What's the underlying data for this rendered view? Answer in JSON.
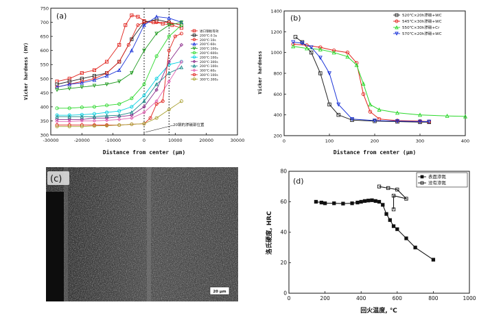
{
  "chart_data": [
    {
      "panel": "(a)",
      "type": "line",
      "xlabel": "Distance from center (μm)",
      "ylabel": "Vicker hardness (HV)",
      "xlim": [
        -30000,
        30000
      ],
      "ylim": [
        300,
        750
      ],
      "xticks": [
        -30000,
        -20000,
        -10000,
        0,
        10000,
        20000,
        30000
      ],
      "yticks": [
        300,
        350,
        400,
        450,
        500,
        550,
        600,
        650,
        700,
        750
      ],
      "grid": false,
      "legend_position": "top-right",
      "annotation": "20钢的渗碳部位置",
      "guides_x": [
        0,
        8000
      ],
      "series": [
        {
          "name": "进口钢板等效",
          "color": "#e0201a",
          "marker": "square",
          "x": [
            -28000,
            -24000,
            -20000,
            -16000,
            -12000,
            -8000,
            -6000,
            -4000,
            -2000,
            0,
            3000,
            6000,
            9000,
            12000
          ],
          "y": [
            490,
            500,
            520,
            530,
            560,
            620,
            690,
            725,
            720,
            705,
            700,
            695,
            690,
            680
          ]
        },
        {
          "name": "200℃-0.5s",
          "color": "#222222",
          "marker": "square",
          "x": [
            -28000,
            -24000,
            -20000,
            -16000,
            -12000,
            -8000,
            -4000,
            0,
            4000,
            8000,
            12000
          ],
          "y": [
            480,
            490,
            500,
            510,
            520,
            560,
            640,
            700,
            710,
            700,
            690
          ]
        },
        {
          "name": "200℃-10s",
          "color": "#e0201a",
          "marker": "circle",
          "x": [
            -28000,
            -24000,
            -20000,
            -16000,
            -12000,
            -8000,
            -5000,
            -2000,
            0,
            4000,
            8000,
            12000
          ],
          "y": [
            470,
            480,
            490,
            500,
            520,
            560,
            620,
            690,
            700,
            700,
            700,
            690
          ]
        },
        {
          "name": "200℃-60s",
          "color": "#1a33d8",
          "marker": "triangle-up",
          "x": [
            -28000,
            -24000,
            -20000,
            -16000,
            -12000,
            -8000,
            -4000,
            0,
            4000,
            8000,
            12000
          ],
          "y": [
            470,
            480,
            485,
            495,
            510,
            530,
            600,
            690,
            720,
            715,
            700
          ]
        },
        {
          "name": "200℃-100s",
          "color": "#1e9a1e",
          "marker": "triangle-down",
          "x": [
            -28000,
            -24000,
            -20000,
            -16000,
            -12000,
            -8000,
            -4000,
            0,
            4000,
            8000,
            12000
          ],
          "y": [
            460,
            465,
            470,
            475,
            480,
            490,
            520,
            600,
            660,
            690,
            700
          ]
        },
        {
          "name": "200℃-600s",
          "color": "#2ad82a",
          "marker": "circle",
          "x": [
            -28000,
            -24000,
            -20000,
            -16000,
            -12000,
            -8000,
            -4000,
            0,
            4000,
            8000,
            12000
          ],
          "y": [
            395,
            395,
            398,
            400,
            405,
            410,
            430,
            480,
            580,
            650,
            690
          ]
        },
        {
          "name": "200℃-100s",
          "color": "#00cfe0",
          "marker": "circle",
          "x": [
            -28000,
            -24000,
            -20000,
            -16000,
            -12000,
            -8000,
            -4000,
            0,
            4000,
            8000,
            12000
          ],
          "y": [
            370,
            370,
            372,
            375,
            380,
            385,
            400,
            440,
            500,
            550,
            560
          ]
        },
        {
          "name": "200℃-300s",
          "color": "#8a2a8a",
          "marker": "diamond",
          "x": [
            -28000,
            -24000,
            -20000,
            -16000,
            -12000,
            -8000,
            -4000,
            0,
            4000,
            8000,
            12000
          ],
          "y": [
            355,
            355,
            355,
            360,
            360,
            365,
            370,
            400,
            460,
            560,
            620
          ]
        },
        {
          "name": "200℃-100s",
          "color": "#1a8a8a",
          "marker": "triangle-up",
          "x": [
            -28000,
            -24000,
            -20000,
            -16000,
            -12000,
            -8000,
            -4000,
            0,
            4000,
            8000,
            12000
          ],
          "y": [
            365,
            365,
            365,
            365,
            368,
            370,
            380,
            420,
            480,
            520,
            540
          ]
        },
        {
          "name": "300℃-60s",
          "color": "#e060b0",
          "marker": "diamond",
          "x": [
            -28000,
            -24000,
            -20000,
            -16000,
            -12000,
            -8000,
            -4000,
            0,
            4000,
            8000,
            12000
          ],
          "y": [
            348,
            348,
            350,
            350,
            352,
            355,
            360,
            380,
            420,
            490,
            560
          ]
        },
        {
          "name": "300℃-100s",
          "color": "#e0201a",
          "marker": "circle",
          "x": [
            -28000,
            -24000,
            -20000,
            -16000,
            -12000,
            -8000,
            -4000,
            0,
            2000,
            4000,
            6000,
            8000,
            10000,
            12000
          ],
          "y": [
            335,
            335,
            335,
            335,
            335,
            335,
            338,
            340,
            360,
            410,
            420,
            600,
            650,
            660
          ]
        },
        {
          "name": "300℃-300s",
          "color": "#a8a030",
          "marker": "circle",
          "x": [
            -28000,
            -24000,
            -20000,
            -16000,
            -12000,
            -8000,
            -4000,
            0,
            4000,
            8000,
            12000
          ],
          "y": [
            330,
            330,
            330,
            332,
            333,
            335,
            338,
            340,
            360,
            390,
            420
          ]
        }
      ]
    },
    {
      "panel": "(b)",
      "type": "line",
      "xlabel": "Distance from center (μm)",
      "ylabel": "Vicker hardness",
      "xlim": [
        0,
        400
      ],
      "ylim": [
        200,
        1400
      ],
      "xticks": [
        0,
        100,
        200,
        300,
        400
      ],
      "yticks": [
        200,
        400,
        600,
        800,
        1000,
        1200,
        1400
      ],
      "grid": false,
      "legend_position": "top-right",
      "series": [
        {
          "name": "520℃×20h渗碳+WC",
          "color": "#222222",
          "marker": "square",
          "x": [
            25,
            40,
            60,
            80,
            100,
            120,
            150,
            200,
            250,
            300,
            320
          ],
          "y": [
            1150,
            1100,
            1000,
            800,
            500,
            400,
            350,
            340,
            335,
            330,
            330
          ]
        },
        {
          "name": "545℃×30h渗碳+WC",
          "color": "#e0201a",
          "marker": "circle",
          "x": [
            20,
            50,
            80,
            110,
            140,
            160,
            175,
            190,
            210,
            250,
            300,
            320
          ],
          "y": [
            1080,
            1070,
            1050,
            1020,
            1000,
            900,
            600,
            430,
            360,
            345,
            340,
            335
          ]
        },
        {
          "name": "550℃×30h渗碳+Cr",
          "color": "#2ad82a",
          "marker": "triangle-up",
          "x": [
            20,
            50,
            80,
            110,
            140,
            160,
            175,
            190,
            210,
            250,
            300,
            360,
            400
          ],
          "y": [
            1060,
            1040,
            1030,
            1000,
            960,
            880,
            700,
            500,
            450,
            420,
            400,
            390,
            385
          ]
        },
        {
          "name": "570℃×20h渗碳+WC",
          "color": "#1a33d8",
          "marker": "triangle-down",
          "x": [
            20,
            40,
            60,
            80,
            100,
            120,
            150,
            200,
            250,
            300,
            320
          ],
          "y": [
            1100,
            1090,
            1050,
            950,
            800,
            500,
            360,
            345,
            340,
            335,
            335
          ]
        }
      ]
    },
    {
      "panel": "(d)",
      "type": "line",
      "xlabel": "回火温度, ℃",
      "ylabel": "洛氏硬度, HRC",
      "xlim": [
        0,
        1000
      ],
      "ylim": [
        0,
        80
      ],
      "xticks": [
        0,
        200,
        400,
        600,
        800,
        1000
      ],
      "yticks": [
        0,
        20,
        40,
        60,
        80
      ],
      "grid": false,
      "legend_position": "top-right",
      "series": [
        {
          "name": "表面渗氮",
          "color": "#111111",
          "marker": "square-filled",
          "x": [
            150,
            180,
            200,
            250,
            300,
            350,
            380,
            400,
            420,
            440,
            460,
            480,
            500,
            520,
            540,
            560,
            580,
            600,
            650,
            700,
            800
          ],
          "y": [
            60,
            59.5,
            59,
            59,
            58.8,
            59,
            59.5,
            60,
            60.5,
            60.8,
            61,
            60.5,
            60,
            58,
            52,
            48,
            44,
            42,
            36,
            30,
            22
          ]
        },
        {
          "name": "没有渗氮",
          "color": "#111111",
          "marker": "square-open",
          "x": [
            500,
            550,
            600,
            650,
            580,
            580
          ],
          "y": [
            70,
            69,
            68,
            62,
            64,
            55
          ]
        }
      ]
    }
  ],
  "panels": {
    "a": {
      "label": "(a)"
    },
    "b": {
      "label": "(b)"
    },
    "c": {
      "label": "(c)",
      "scale_bar": "20 μm"
    },
    "d": {
      "label": "(d)"
    }
  }
}
